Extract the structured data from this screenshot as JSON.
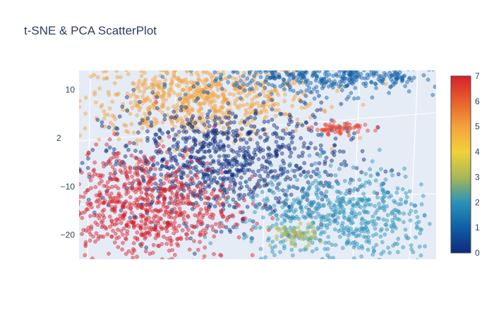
{
  "chart_data": {
    "type": "scatter",
    "title": "t-SNE & PCA ScatterPlot",
    "xlabel": "",
    "ylabel": "",
    "y_ticks": [
      10,
      -10,
      -20
    ],
    "y_tick_labels": [
      "10",
      "−10",
      "−20"
    ],
    "partial_label": "2",
    "ylim": [
      -25,
      14
    ],
    "grid": true,
    "background": "#e5ecf6",
    "colorbar": {
      "min": 0,
      "max": 7,
      "ticks": [
        0,
        1,
        2,
        3,
        4,
        5,
        6,
        7
      ],
      "tick_labels": [
        "0",
        "1",
        "2",
        "3",
        "4",
        "5",
        "6",
        "7"
      ],
      "colorscale": [
        "#0d2a7a",
        "#0f5fa6",
        "#2a93b8",
        "#a7b855",
        "#f2d13a",
        "#f4a23c",
        "#e8602c",
        "#d7202a"
      ]
    },
    "clusters": [
      {
        "color_value": 5,
        "color": "#f4a23c",
        "center": [
          -2,
          8
        ],
        "spread": [
          5,
          4
        ],
        "count": 700
      },
      {
        "color_value": 0.2,
        "color": "#0d2a7a",
        "center": [
          0,
          -5
        ],
        "spread": [
          5,
          6
        ],
        "count": 900
      },
      {
        "color_value": 7,
        "color": "#d7202a",
        "center": [
          -7,
          -14
        ],
        "spread": [
          4,
          6
        ],
        "count": 800
      },
      {
        "color_value": 1.7,
        "color": "#2a93b8",
        "center": [
          10,
          -16
        ],
        "spread": [
          4,
          5
        ],
        "count": 600
      },
      {
        "color_value": 1,
        "color": "#0f5fa6",
        "center": [
          9,
          13
        ],
        "spread": [
          5,
          2
        ],
        "count": 450
      },
      {
        "color_value": 2.5,
        "color": "#a7b855",
        "center": [
          6,
          -20
        ],
        "spread": [
          1,
          1.2
        ],
        "count": 60
      },
      {
        "color_value": 6.5,
        "color": "#e8402c",
        "center": [
          10,
          2
        ],
        "spread": [
          1.2,
          0.6
        ],
        "count": 60
      }
    ],
    "axis_range_x": [
      -12,
      18
    ]
  }
}
